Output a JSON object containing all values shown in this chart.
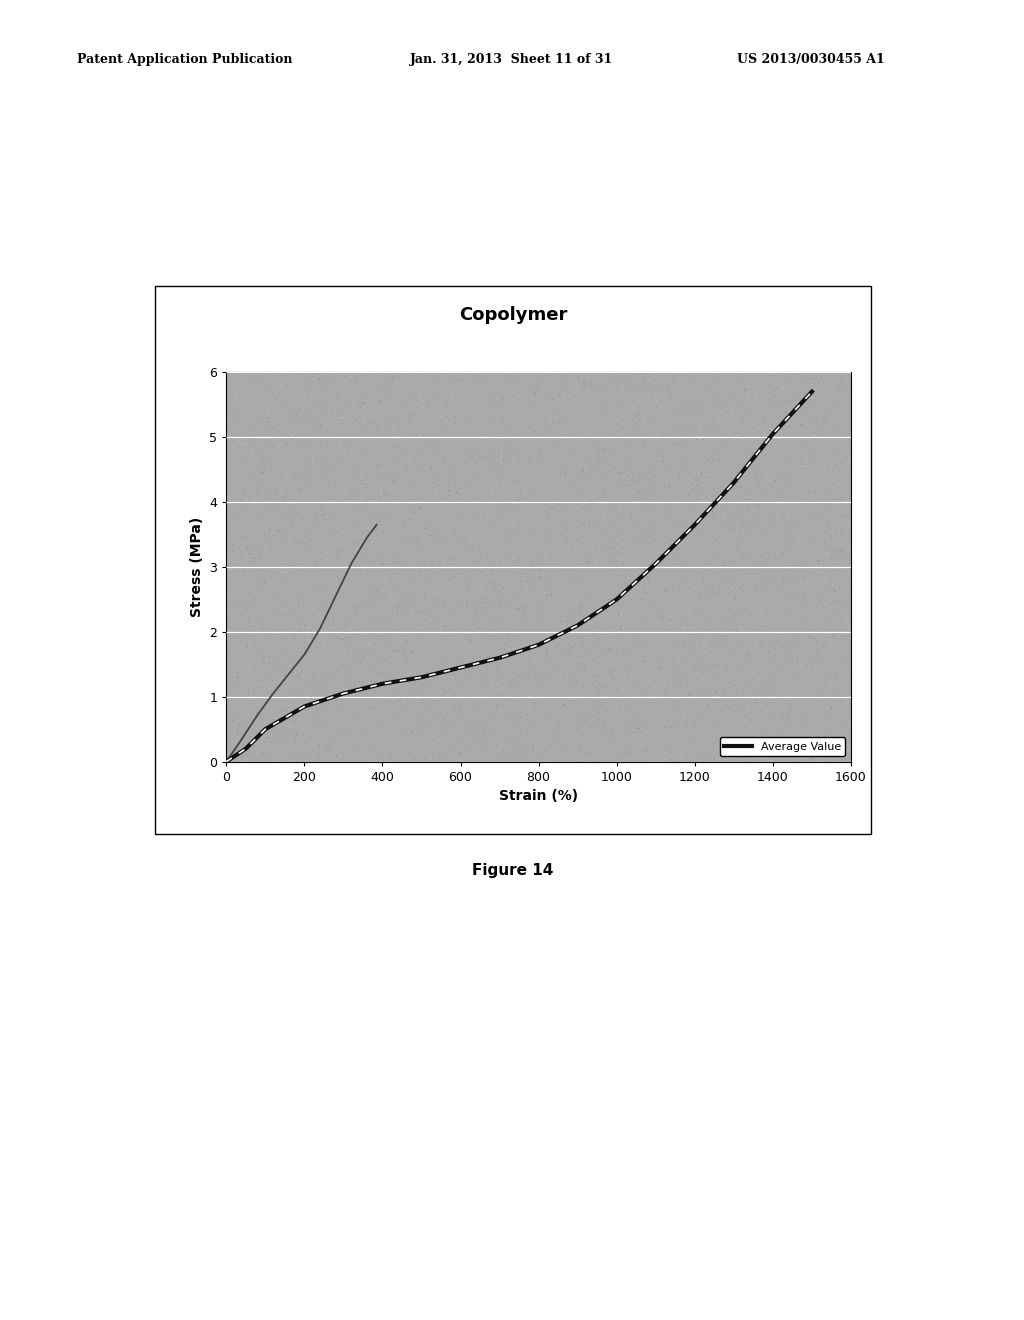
{
  "title": "Copolymer",
  "xlabel": "Strain (%)",
  "ylabel": "Stress (MPa)",
  "xlim": [
    0,
    1600
  ],
  "ylim": [
    0,
    6
  ],
  "xticks": [
    0,
    200,
    400,
    600,
    800,
    1000,
    1200,
    1400,
    1600
  ],
  "yticks": [
    0,
    1,
    2,
    3,
    4,
    5,
    6
  ],
  "caption": "Figure 14",
  "header_left": "Patent Application Publication",
  "header_mid": "Jan. 31, 2013  Sheet 11 of 31",
  "header_right": "US 2013/0030455 A1",
  "legend_label": "Average Value",
  "bg_color": "#aaaaaa",
  "line_color_avg": "#111111",
  "line_color_single": "#444444",
  "curve1_x": [
    0,
    40,
    80,
    120,
    160,
    200,
    240,
    280,
    320,
    360,
    385
  ],
  "curve1_y": [
    0,
    0.35,
    0.72,
    1.05,
    1.35,
    1.65,
    2.05,
    2.55,
    3.05,
    3.45,
    3.65
  ],
  "curve2_x": [
    0,
    50,
    100,
    200,
    300,
    400,
    500,
    600,
    700,
    800,
    900,
    1000,
    1100,
    1200,
    1300,
    1400,
    1500
  ],
  "curve2_y": [
    0,
    0.2,
    0.5,
    0.85,
    1.05,
    1.2,
    1.3,
    1.45,
    1.6,
    1.8,
    2.1,
    2.5,
    3.05,
    3.65,
    4.3,
    5.05,
    5.7
  ]
}
